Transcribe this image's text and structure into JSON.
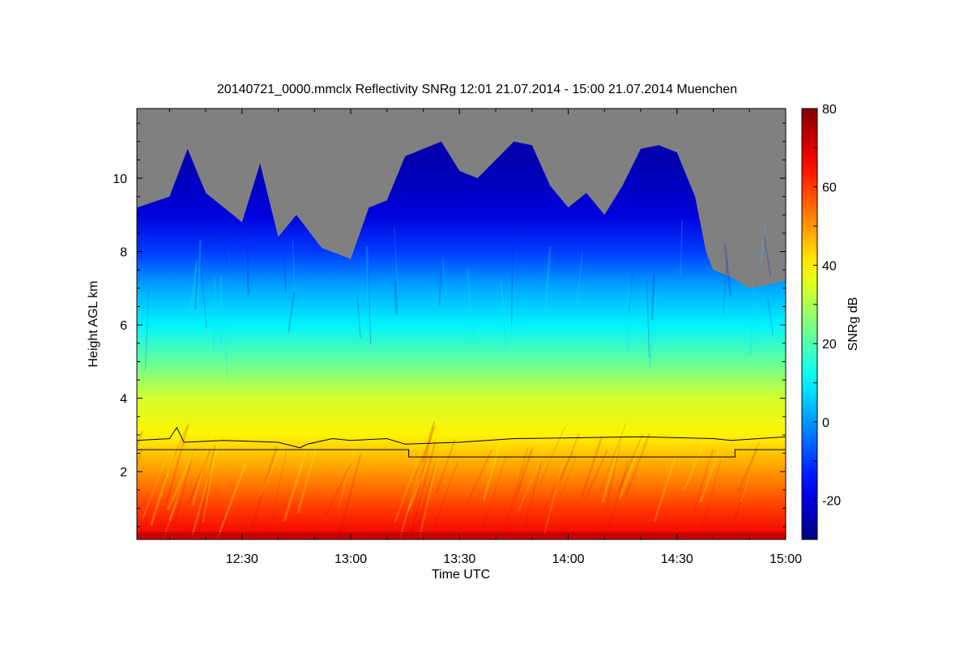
{
  "chart_data": {
    "type": "heatmap",
    "title": "20140721_0000.mmclx Reflectivity SNRg   12:01 21.07.2014 - 15:00 21.07.2014 Muenchen",
    "xlabel": "Time UTC",
    "ylabel": "Height AGL km",
    "colorbar_label": "SNRg dB",
    "x_range": [
      "12:01",
      "15:00"
    ],
    "y_range": [
      0.15,
      11.9
    ],
    "x_ticks": [
      "12:30",
      "13:00",
      "13:30",
      "14:00",
      "14:30",
      "15:00"
    ],
    "y_ticks": [
      "2",
      "4",
      "6",
      "8",
      "10"
    ],
    "colorbar": {
      "range": [
        -30,
        80
      ],
      "ticks": [
        "-20",
        "0",
        "20",
        "40",
        "60",
        "80"
      ],
      "colormap": "jet",
      "no_signal_color": "#808080"
    },
    "profile": {
      "description": "SNRg decreases with height",
      "stops": [
        {
          "height_km": 0.2,
          "snr_db": 68
        },
        {
          "height_km": 1.0,
          "snr_db": 60
        },
        {
          "height_km": 2.0,
          "snr_db": 50
        },
        {
          "height_km": 3.0,
          "snr_db": 40
        },
        {
          "height_km": 4.0,
          "snr_db": 34
        },
        {
          "height_km": 5.0,
          "snr_db": 22
        },
        {
          "height_km": 6.0,
          "snr_db": 10
        },
        {
          "height_km": 7.0,
          "snr_db": 2
        },
        {
          "height_km": 8.0,
          "snr_db": -10
        },
        {
          "height_km": 9.0,
          "snr_db": -20
        },
        {
          "height_km": 10.5,
          "snr_db": -25
        }
      ]
    },
    "cloud_top_km": [
      {
        "time": "12:01",
        "height_km": 9.2
      },
      {
        "time": "12:10",
        "height_km": 9.5
      },
      {
        "time": "12:15",
        "height_km": 10.8
      },
      {
        "time": "12:20",
        "height_km": 9.6
      },
      {
        "time": "12:30",
        "height_km": 8.8
      },
      {
        "time": "12:35",
        "height_km": 10.4
      },
      {
        "time": "12:40",
        "height_km": 8.4
      },
      {
        "time": "12:45",
        "height_km": 9.0
      },
      {
        "time": "12:52",
        "height_km": 8.1
      },
      {
        "time": "13:00",
        "height_km": 7.8
      },
      {
        "time": "13:05",
        "height_km": 9.2
      },
      {
        "time": "13:10",
        "height_km": 9.4
      },
      {
        "time": "13:15",
        "height_km": 10.6
      },
      {
        "time": "13:20",
        "height_km": 10.8
      },
      {
        "time": "13:25",
        "height_km": 11.0
      },
      {
        "time": "13:30",
        "height_km": 10.2
      },
      {
        "time": "13:35",
        "height_km": 10.0
      },
      {
        "time": "13:40",
        "height_km": 10.5
      },
      {
        "time": "13:45",
        "height_km": 11.0
      },
      {
        "time": "13:50",
        "height_km": 10.9
      },
      {
        "time": "13:55",
        "height_km": 9.8
      },
      {
        "time": "14:00",
        "height_km": 9.2
      },
      {
        "time": "14:05",
        "height_km": 9.6
      },
      {
        "time": "14:10",
        "height_km": 9.0
      },
      {
        "time": "14:15",
        "height_km": 9.8
      },
      {
        "time": "14:20",
        "height_km": 10.8
      },
      {
        "time": "14:25",
        "height_km": 10.9
      },
      {
        "time": "14:30",
        "height_km": 10.7
      },
      {
        "time": "14:35",
        "height_km": 9.5
      },
      {
        "time": "14:38",
        "height_km": 8.0
      },
      {
        "time": "14:40",
        "height_km": 7.5
      },
      {
        "time": "14:45",
        "height_km": 7.3
      },
      {
        "time": "14:50",
        "height_km": 7.0
      },
      {
        "time": "15:00",
        "height_km": 7.2
      }
    ],
    "lines": [
      {
        "style": "jagged",
        "points": [
          {
            "time": "12:01",
            "height_km": 2.85
          },
          {
            "time": "12:10",
            "height_km": 2.9
          },
          {
            "time": "12:12",
            "height_km": 3.2
          },
          {
            "time": "12:14",
            "height_km": 2.8
          },
          {
            "time": "12:25",
            "height_km": 2.85
          },
          {
            "time": "12:40",
            "height_km": 2.8
          },
          {
            "time": "12:46",
            "height_km": 2.65
          },
          {
            "time": "12:48",
            "height_km": 2.75
          },
          {
            "time": "12:55",
            "height_km": 2.9
          },
          {
            "time": "13:00",
            "height_km": 2.85
          },
          {
            "time": "13:10",
            "height_km": 2.9
          },
          {
            "time": "13:15",
            "height_km": 2.75
          },
          {
            "time": "13:30",
            "height_km": 2.8
          },
          {
            "time": "13:45",
            "height_km": 2.9
          },
          {
            "time": "14:00",
            "height_km": 2.92
          },
          {
            "time": "14:20",
            "height_km": 2.95
          },
          {
            "time": "14:40",
            "height_km": 2.9
          },
          {
            "time": "14:45",
            "height_km": 2.85
          },
          {
            "time": "15:00",
            "height_km": 2.95
          }
        ]
      },
      {
        "style": "step",
        "points": [
          {
            "time": "12:01",
            "height_km": 2.6
          },
          {
            "time": "13:16",
            "height_km": 2.6
          },
          {
            "time": "13:16",
            "height_km": 2.4
          },
          {
            "time": "14:46",
            "height_km": 2.4
          },
          {
            "time": "14:46",
            "height_km": 2.6
          },
          {
            "time": "15:00",
            "height_km": 2.6
          }
        ]
      }
    ]
  }
}
